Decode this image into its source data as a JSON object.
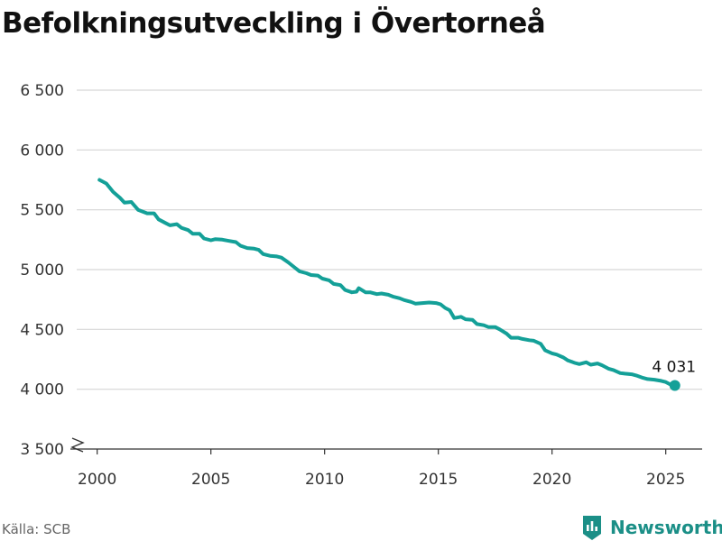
{
  "title": "Befolkningsutveckling i Övertorneå",
  "source": "Källa: SCB",
  "brand": {
    "name": "Newsworthy",
    "icon": "bar-chart-logo-icon",
    "color": "#1b8f87"
  },
  "chart_data": {
    "type": "line",
    "title": "Befolkningsutveckling i Övertorneå",
    "xlabel": "",
    "ylabel": "",
    "xlim": [
      1999.1,
      2026.6
    ],
    "ylim": [
      3500,
      6500
    ],
    "x_ticks": [
      2000,
      2005,
      2010,
      2015,
      2020,
      2025
    ],
    "x_tick_labels": [
      "2000",
      "2005",
      "2010",
      "2015",
      "2020",
      "2025"
    ],
    "y_ticks": [
      3500,
      4000,
      4500,
      5000,
      5500,
      6000,
      6500
    ],
    "y_tick_labels": [
      "3 500",
      "4 000",
      "4 500",
      "5 000",
      "5 500",
      "6 000",
      "6 500"
    ],
    "y_axis_break": true,
    "grid": "horizontal",
    "line_color": "#14a098",
    "end_label": "4 031",
    "series": [
      {
        "values": [
          [
            2000.1,
            5750
          ],
          [
            2000.4,
            5720
          ],
          [
            2000.7,
            5650
          ],
          [
            2001.0,
            5600
          ],
          [
            2001.2,
            5560
          ],
          [
            2001.5,
            5565
          ],
          [
            2001.8,
            5500
          ],
          [
            2002.2,
            5470
          ],
          [
            2002.5,
            5470
          ],
          [
            2002.7,
            5420
          ],
          [
            2003.0,
            5390
          ],
          [
            2003.2,
            5370
          ],
          [
            2003.5,
            5380
          ],
          [
            2003.7,
            5350
          ],
          [
            2004.0,
            5330
          ],
          [
            2004.2,
            5300
          ],
          [
            2004.5,
            5300
          ],
          [
            2004.7,
            5260
          ],
          [
            2005.0,
            5245
          ],
          [
            2005.2,
            5255
          ],
          [
            2005.5,
            5250
          ],
          [
            2005.8,
            5240
          ],
          [
            2006.1,
            5230
          ],
          [
            2006.3,
            5200
          ],
          [
            2006.6,
            5180
          ],
          [
            2006.9,
            5175
          ],
          [
            2007.1,
            5165
          ],
          [
            2007.3,
            5130
          ],
          [
            2007.6,
            5115
          ],
          [
            2007.9,
            5110
          ],
          [
            2008.1,
            5100
          ],
          [
            2008.4,
            5060
          ],
          [
            2008.7,
            5015
          ],
          [
            2008.9,
            4985
          ],
          [
            2009.2,
            4970
          ],
          [
            2009.4,
            4955
          ],
          [
            2009.7,
            4950
          ],
          [
            2009.9,
            4925
          ],
          [
            2010.2,
            4910
          ],
          [
            2010.4,
            4880
          ],
          [
            2010.7,
            4870
          ],
          [
            2010.9,
            4830
          ],
          [
            2011.2,
            4810
          ],
          [
            2011.4,
            4815
          ],
          [
            2011.5,
            4845
          ],
          [
            2011.8,
            4810
          ],
          [
            2012.0,
            4810
          ],
          [
            2012.3,
            4795
          ],
          [
            2012.5,
            4800
          ],
          [
            2012.8,
            4790
          ],
          [
            2013.0,
            4775
          ],
          [
            2013.3,
            4760
          ],
          [
            2013.5,
            4745
          ],
          [
            2013.8,
            4730
          ],
          [
            2014.0,
            4715
          ],
          [
            2014.3,
            4720
          ],
          [
            2014.6,
            4725
          ],
          [
            2014.9,
            4720
          ],
          [
            2015.1,
            4710
          ],
          [
            2015.3,
            4680
          ],
          [
            2015.5,
            4660
          ],
          [
            2015.7,
            4595
          ],
          [
            2016.0,
            4605
          ],
          [
            2016.2,
            4585
          ],
          [
            2016.5,
            4580
          ],
          [
            2016.7,
            4545
          ],
          [
            2017.0,
            4535
          ],
          [
            2017.2,
            4520
          ],
          [
            2017.5,
            4520
          ],
          [
            2017.7,
            4500
          ],
          [
            2018.0,
            4465
          ],
          [
            2018.2,
            4430
          ],
          [
            2018.5,
            4430
          ],
          [
            2018.7,
            4420
          ],
          [
            2019.0,
            4410
          ],
          [
            2019.2,
            4405
          ],
          [
            2019.5,
            4380
          ],
          [
            2019.7,
            4325
          ],
          [
            2020.0,
            4300
          ],
          [
            2020.2,
            4290
          ],
          [
            2020.5,
            4265
          ],
          [
            2020.7,
            4240
          ],
          [
            2021.0,
            4220
          ],
          [
            2021.2,
            4210
          ],
          [
            2021.5,
            4225
          ],
          [
            2021.7,
            4205
          ],
          [
            2022.0,
            4215
          ],
          [
            2022.2,
            4200
          ],
          [
            2022.5,
            4170
          ],
          [
            2022.7,
            4160
          ],
          [
            2023.0,
            4135
          ],
          [
            2023.2,
            4130
          ],
          [
            2023.5,
            4125
          ],
          [
            2023.7,
            4115
          ],
          [
            2024.0,
            4095
          ],
          [
            2024.2,
            4085
          ],
          [
            2024.5,
            4080
          ],
          [
            2024.8,
            4070
          ],
          [
            2025.0,
            4060
          ],
          [
            2025.2,
            4040
          ],
          [
            2025.4,
            4031
          ]
        ]
      }
    ]
  }
}
